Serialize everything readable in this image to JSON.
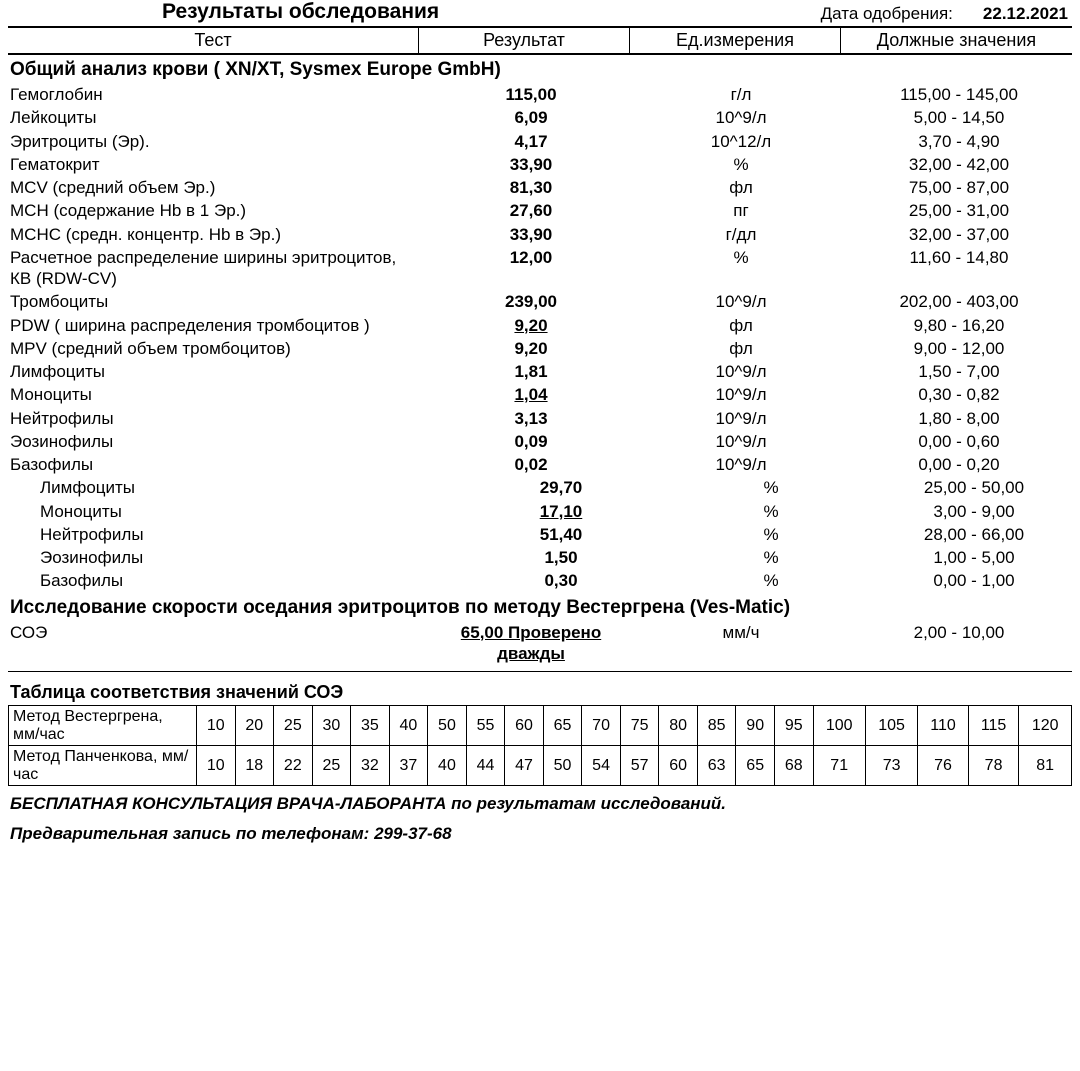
{
  "doc_title": "Результаты обследования",
  "date_label": "Дата одобрения:",
  "date_value": "22.12.2021",
  "header_cols": [
    "Тест",
    "Результат",
    "Ед.измерения",
    "Должные значения"
  ],
  "sections": [
    {
      "title": "Общий анализ крови ( XN/XT, Sysmex  Europe GmbH)",
      "rows": [
        {
          "test": "Гемоглобин",
          "result": "115,00",
          "unit": "г/л",
          "ref": "115,00 - 145,00",
          "flag": false,
          "indent": false
        },
        {
          "test": "Лейкоциты",
          "result": "6,09",
          "unit": "10^9/л",
          "ref": "5,00 - 14,50",
          "flag": false,
          "indent": false
        },
        {
          "test": "Эритроциты (Эр).",
          "result": "4,17",
          "unit": "10^12/л",
          "ref": "3,70 - 4,90",
          "flag": false,
          "indent": false
        },
        {
          "test": "Гематокрит",
          "result": "33,90",
          "unit": "%",
          "ref": "32,00 - 42,00",
          "flag": false,
          "indent": false
        },
        {
          "test": "MCV (средний объем Эр.)",
          "result": "81,30",
          "unit": "фл",
          "ref": "75,00 - 87,00",
          "flag": false,
          "indent": false
        },
        {
          "test": "MCH (содержание Hb в 1 Эр.)",
          "result": "27,60",
          "unit": "пг",
          "ref": "25,00 - 31,00",
          "flag": false,
          "indent": false
        },
        {
          "test": "MCHC (средн. концентр. Hb в Эр.)",
          "result": "33,90",
          "unit": "г/дл",
          "ref": "32,00 - 37,00",
          "flag": false,
          "indent": false
        },
        {
          "test": "Расчетное распределение ширины эритроцитов, КВ (RDW-CV)",
          "result": "12,00",
          "unit": "%",
          "ref": "11,60 - 14,80",
          "flag": false,
          "indent": false
        },
        {
          "test": "Тромбоциты",
          "result": "239,00",
          "unit": "10^9/л",
          "ref": "202,00 - 403,00",
          "flag": false,
          "indent": false
        },
        {
          "test": "PDW ( ширина распределения тромбоцитов )",
          "result": "9,20",
          "unit": "фл",
          "ref": "9,80 - 16,20",
          "flag": true,
          "indent": false
        },
        {
          "test": "MPV (средний объем тромбоцитов)",
          "result": "9,20",
          "unit": "фл",
          "ref": "9,00 - 12,00",
          "flag": false,
          "indent": false
        },
        {
          "test": "Лимфоциты",
          "result": "1,81",
          "unit": "10^9/л",
          "ref": "1,50 - 7,00",
          "flag": false,
          "indent": false
        },
        {
          "test": "Моноциты",
          "result": "1,04",
          "unit": "10^9/л",
          "ref": "0,30 - 0,82",
          "flag": true,
          "indent": false
        },
        {
          "test": "Нейтрофилы",
          "result": "3,13",
          "unit": "10^9/л",
          "ref": "1,80 - 8,00",
          "flag": false,
          "indent": false
        },
        {
          "test": "Эозинофилы",
          "result": "0,09",
          "unit": "10^9/л",
          "ref": "0,00 - 0,60",
          "flag": false,
          "indent": false
        },
        {
          "test": "Базофилы",
          "result": "0,02",
          "unit": "10^9/л",
          "ref": "0,00 - 0,20",
          "flag": false,
          "indent": false
        },
        {
          "test": "Лимфоциты",
          "result": "29,70",
          "unit": "%",
          "ref": "25,00 - 50,00",
          "flag": false,
          "indent": true
        },
        {
          "test": "Моноциты",
          "result": "17,10",
          "unit": "%",
          "ref": "3,00 - 9,00",
          "flag": true,
          "indent": true
        },
        {
          "test": "Нейтрофилы",
          "result": "51,40",
          "unit": "%",
          "ref": "28,00 - 66,00",
          "flag": false,
          "indent": true
        },
        {
          "test": "Эозинофилы",
          "result": "1,50",
          "unit": "%",
          "ref": "1,00 - 5,00",
          "flag": false,
          "indent": true
        },
        {
          "test": "Базофилы",
          "result": "0,30",
          "unit": "%",
          "ref": "0,00 - 1,00",
          "flag": false,
          "indent": true
        }
      ]
    },
    {
      "title": "Исследование скорости оседания эритроцитов по методу Вестергрена (Ves-Matic)",
      "rows": [
        {
          "test": "СОЭ",
          "result": "65,00 Проверено дважды",
          "unit": "мм/ч",
          "ref": "2,00 - 10,00",
          "flag": true,
          "indent": false
        }
      ]
    }
  ],
  "corr_table": {
    "title": "Таблица соответствия значений СОЭ",
    "row_labels": [
      "Метод Вестергрена, мм/час",
      "Метод Панченкова, мм/час"
    ],
    "rows": [
      [
        "10",
        "20",
        "25",
        "30",
        "35",
        "40",
        "50",
        "55",
        "60",
        "65",
        "70",
        "75",
        "80",
        "85",
        "90",
        "95",
        "100",
        "105",
        "110",
        "115",
        "120"
      ],
      [
        "10",
        "18",
        "22",
        "25",
        "32",
        "37",
        "40",
        "44",
        "47",
        "50",
        "54",
        "57",
        "60",
        "63",
        "65",
        "68",
        "71",
        "73",
        "76",
        "78",
        "81"
      ]
    ]
  },
  "footer_lines": [
    "БЕСПЛАТНАЯ КОНСУЛЬТАЦИЯ ВРАЧА-ЛАБОРАНТА по результатам исследований.",
    "Предварительная запись по телефонам: 299-37-68"
  ],
  "col_widths": {
    "test": 410,
    "result": 210,
    "unit": 210
  }
}
